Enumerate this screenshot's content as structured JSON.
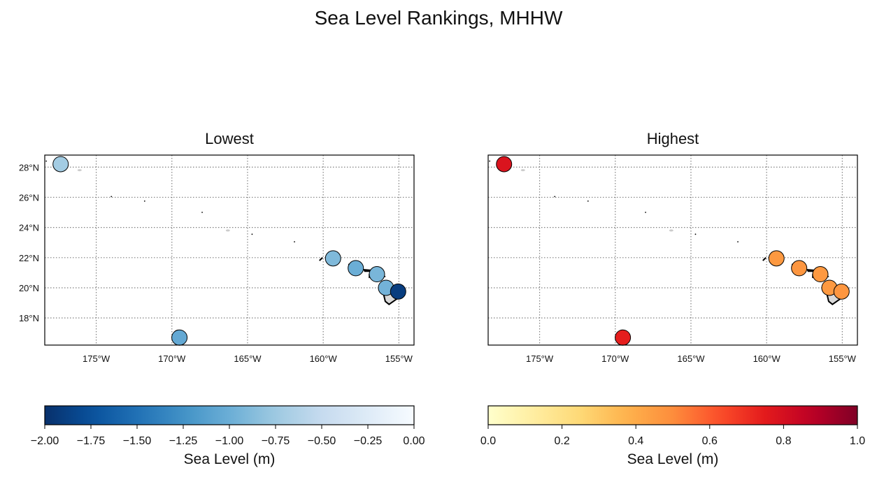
{
  "title": "Sea Level Rankings, MHHW",
  "panels": [
    {
      "key": "lowest",
      "title": "Lowest",
      "colorbar": {
        "cmap": "Blues_r",
        "ticks": [
          "−2.00",
          "−1.75",
          "−1.50",
          "−1.25",
          "−1.00",
          "−0.75",
          "−0.50",
          "−0.25",
          "0.00"
        ],
        "range": [
          -2.0,
          0.0
        ],
        "label": "Sea Level (m)"
      }
    },
    {
      "key": "highest",
      "title": "Highest",
      "colorbar": {
        "cmap": "YlOrRd",
        "ticks": [
          "0.0",
          "0.2",
          "0.4",
          "0.6",
          "0.8",
          "1.0"
        ],
        "range": [
          0.0,
          1.0
        ],
        "label": "Sea Level (m)"
      }
    }
  ],
  "map": {
    "lon_range": [
      -178.4,
      -154.0
    ],
    "lat_range": [
      16.2,
      28.8
    ],
    "lon_ticks": [
      "175°W",
      "170°W",
      "165°W",
      "160°W",
      "155°W"
    ],
    "lat_ticks": [
      "28°N",
      "26°N",
      "24°N",
      "22°N",
      "20°N",
      "18°N"
    ],
    "gridlines": true
  },
  "stations": [
    {
      "lon": -177.35,
      "lat": 28.2,
      "lowest": -0.72,
      "highest": 0.78
    },
    {
      "lon": -169.5,
      "lat": 16.7,
      "lowest": -1.05,
      "highest": 0.74
    },
    {
      "lon": -159.35,
      "lat": 21.95,
      "lowest": -0.9,
      "highest": 0.46
    },
    {
      "lon": -157.85,
      "lat": 21.3,
      "lowest": -1.0,
      "highest": 0.47
    },
    {
      "lon": -156.45,
      "lat": 20.9,
      "lowest": -0.93,
      "highest": 0.46
    },
    {
      "lon": -155.85,
      "lat": 20.0,
      "lowest": -0.96,
      "highest": 0.46
    },
    {
      "lon": -155.05,
      "lat": 19.75,
      "lowest": -1.9,
      "highest": 0.47
    }
  ],
  "colors": {
    "blues": [
      "#08306b",
      "#08519c",
      "#2171b5",
      "#4292c6",
      "#6baed6",
      "#9ecae1",
      "#c6dbef",
      "#deebf7",
      "#f7fbff"
    ],
    "ylorrd": [
      "#ffffcc",
      "#ffeda0",
      "#fed976",
      "#feb24c",
      "#fd8d3c",
      "#fc4e2a",
      "#e31a1c",
      "#bd0026",
      "#800026"
    ],
    "grid": "#808080",
    "land": "#d9d9d9"
  }
}
